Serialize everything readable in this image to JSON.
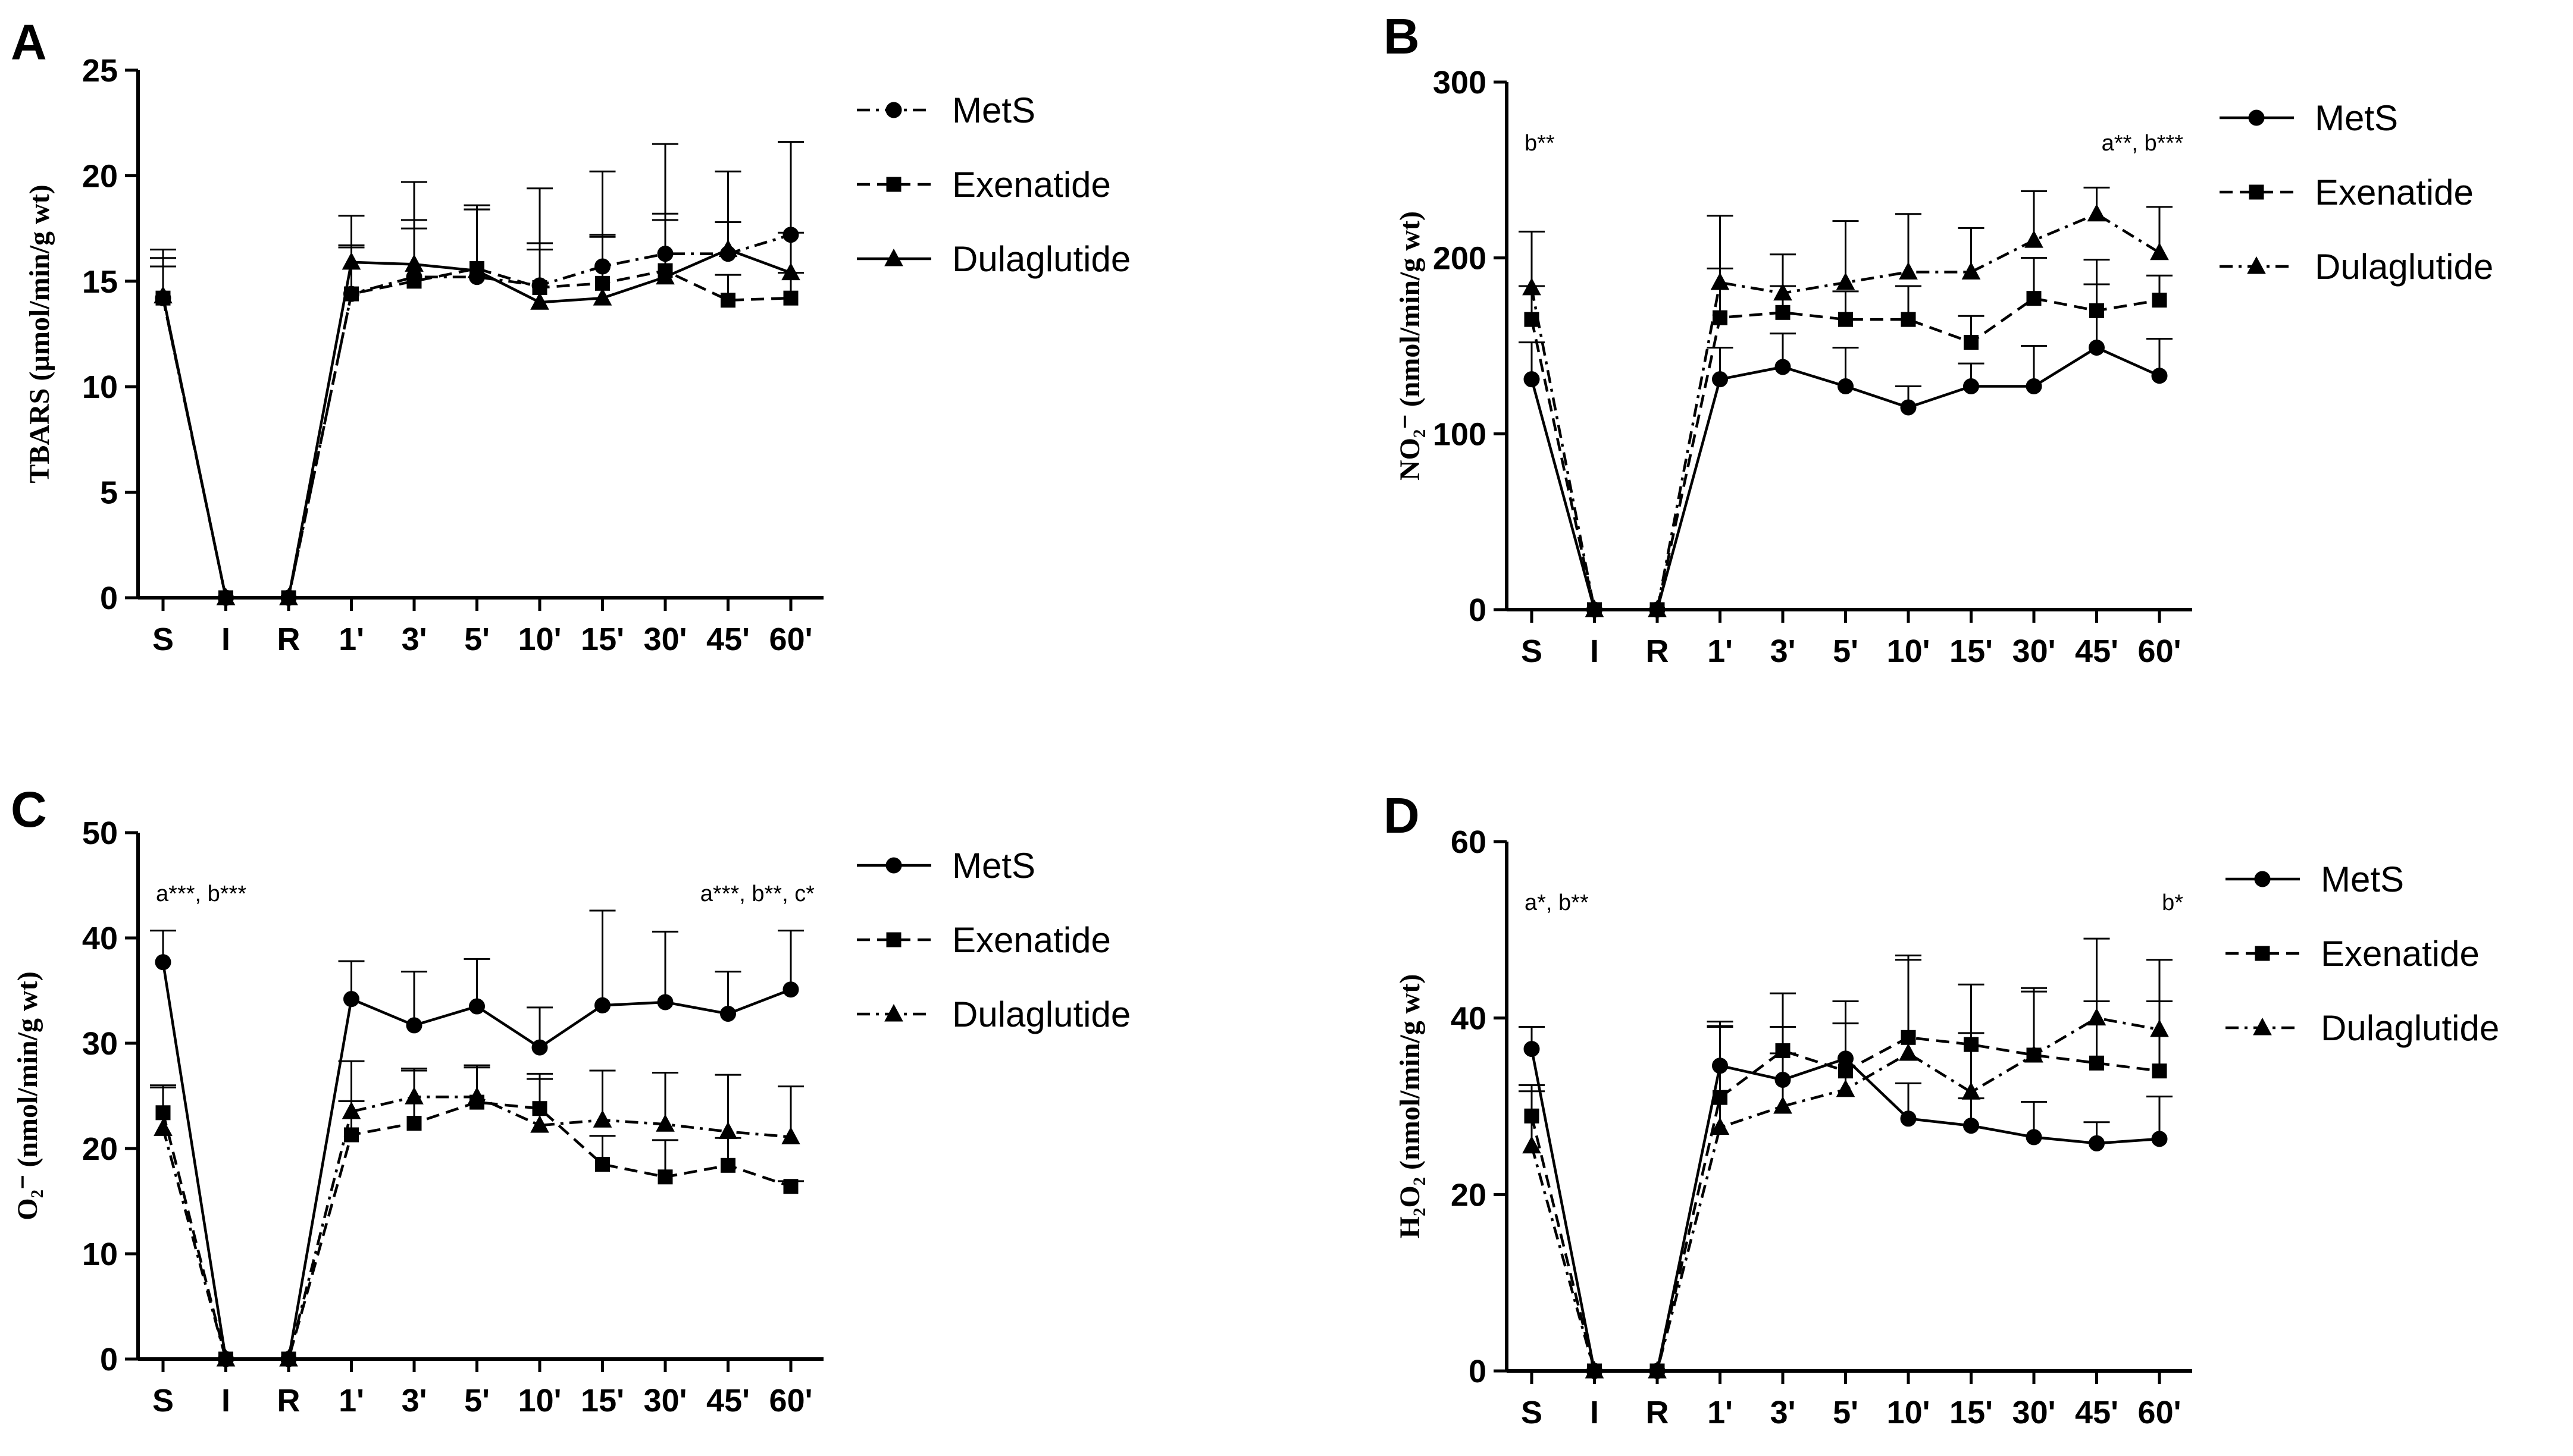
{
  "chart_data": [
    {
      "panel": "A",
      "type": "line",
      "categories": [
        "S",
        "I",
        "R",
        "1'",
        "3'",
        "5'",
        "10'",
        "15'",
        "30'",
        "45'",
        "60'"
      ],
      "ylabel": "TBARS (µmol/min/g wt)",
      "ylim": [
        0,
        25
      ],
      "yticks": [
        0,
        5,
        10,
        15,
        20,
        25
      ],
      "legend_position": "right",
      "annotations": [],
      "series": [
        {
          "name": "MetS",
          "marker": "circle",
          "dash": "dashdot",
          "values": [
            14.2,
            0,
            0,
            14.4,
            15.2,
            15.2,
            14.8,
            15.7,
            16.3,
            16.3,
            17.2
          ],
          "errors": [
            1.9,
            0,
            0,
            2.2,
            2.7,
            3.2,
            2.0,
            4.5,
            5.2,
            1.5,
            4.4
          ]
        },
        {
          "name": "Exenatide",
          "marker": "square",
          "dash": "dash",
          "values": [
            14.2,
            0,
            0,
            14.4,
            15.0,
            15.6,
            14.7,
            14.9,
            15.5,
            14.1,
            14.2
          ],
          "errors": [
            1.5,
            0,
            0,
            2.3,
            2.5,
            3.0,
            1.8,
            2.3,
            2.4,
            1.2,
            1.2
          ]
        },
        {
          "name": "Dulaglutide",
          "marker": "triangle",
          "dash": "solid",
          "values": [
            14.3,
            0,
            0,
            15.9,
            15.8,
            15.5,
            14.0,
            14.2,
            15.2,
            16.5,
            15.4
          ],
          "errors": [
            2.2,
            0,
            0,
            2.2,
            3.9,
            2.9,
            5.4,
            2.9,
            3.0,
            3.7,
            1.9
          ]
        }
      ]
    },
    {
      "panel": "B",
      "type": "line",
      "categories": [
        "S",
        "I",
        "R",
        "1'",
        "3'",
        "5'",
        "10'",
        "15'",
        "30'",
        "45'",
        "60'"
      ],
      "ylabel": "NO₂⁻ (nmol/min/g wt)",
      "ylim": [
        0,
        300
      ],
      "yticks": [
        0,
        100,
        200,
        300
      ],
      "legend_position": "right",
      "annotations": [
        {
          "text": "b**",
          "at_category": "S"
        },
        {
          "text": "a**, b***",
          "at_category": "60'"
        }
      ],
      "series": [
        {
          "name": "MetS",
          "marker": "circle",
          "dash": "solid",
          "values": [
            131,
            0,
            0,
            131,
            138,
            127,
            115,
            127,
            127,
            149,
            133
          ],
          "errors": [
            21,
            0,
            0,
            18,
            19,
            22,
            12,
            13,
            23,
            50,
            21
          ]
        },
        {
          "name": "Exenatide",
          "marker": "square",
          "dash": "dash",
          "values": [
            165,
            0,
            0,
            166,
            169,
            165,
            165,
            152,
            177,
            170,
            176
          ],
          "errors": [
            19,
            0,
            0,
            28,
            15,
            16,
            19,
            15,
            23,
            15,
            14
          ]
        },
        {
          "name": "Dulaglutide",
          "marker": "triangle",
          "dash": "dashdot",
          "values": [
            183,
            0,
            0,
            186,
            180,
            186,
            192,
            192,
            210,
            225,
            203
          ],
          "errors": [
            32,
            0,
            0,
            38,
            22,
            35,
            33,
            25,
            28,
            15,
            26
          ]
        }
      ]
    },
    {
      "panel": "C",
      "type": "line",
      "categories": [
        "S",
        "I",
        "R",
        "1'",
        "3'",
        "5'",
        "10'",
        "15'",
        "30'",
        "45'",
        "60'"
      ],
      "ylabel": "O₂⁻ (nmol/min/g wt)",
      "ylim": [
        0,
        50
      ],
      "yticks": [
        0,
        10,
        20,
        30,
        40,
        50
      ],
      "legend_position": "right",
      "annotations": [
        {
          "text": "a***, b***",
          "at_category": "S"
        },
        {
          "text": "a***, b**, c*",
          "at_category": "60'"
        }
      ],
      "series": [
        {
          "name": "MetS",
          "marker": "circle",
          "dash": "solid",
          "values": [
            37.7,
            0,
            0,
            34.2,
            31.7,
            33.5,
            29.6,
            33.6,
            33.9,
            32.8,
            35.1
          ],
          "errors": [
            3.0,
            0,
            0,
            3.6,
            5.1,
            4.5,
            3.8,
            9.0,
            6.7,
            4.0,
            5.6
          ]
        },
        {
          "name": "Exenatide",
          "marker": "square",
          "dash": "dash",
          "values": [
            23.4,
            0,
            0,
            21.3,
            22.4,
            24.4,
            23.8,
            18.5,
            17.3,
            18.4,
            16.4
          ],
          "errors": [
            2.6,
            0,
            0,
            7.0,
            5.0,
            3.5,
            3.3,
            2.7,
            3.5,
            2.6,
            0.5
          ]
        },
        {
          "name": "Dulaglutide",
          "marker": "triangle",
          "dash": "dashdot",
          "values": [
            21.9,
            0,
            0,
            23.5,
            24.9,
            24.9,
            22.2,
            22.7,
            22.3,
            21.6,
            21.1
          ],
          "errors": [
            3.9,
            0,
            0,
            1.0,
            2.7,
            2.8,
            4.4,
            4.7,
            4.9,
            5.4,
            4.8
          ]
        }
      ]
    },
    {
      "panel": "D",
      "type": "line",
      "categories": [
        "S",
        "I",
        "R",
        "1'",
        "3'",
        "5'",
        "10'",
        "15'",
        "30'",
        "45'",
        "60'"
      ],
      "ylabel": "H₂O₂ (nmol/min/g wt)",
      "ylim": [
        0,
        60
      ],
      "yticks": [
        0,
        20,
        40,
        60
      ],
      "legend_position": "right",
      "annotations": [
        {
          "text": "a*, b**",
          "at_category": "S"
        },
        {
          "text": "b*",
          "at_category": "60'"
        }
      ],
      "series": [
        {
          "name": "MetS",
          "marker": "circle",
          "dash": "solid",
          "values": [
            36.5,
            0,
            0,
            34.6,
            33.0,
            35.4,
            28.6,
            27.8,
            26.5,
            25.8,
            26.3
          ],
          "errors": [
            2.5,
            0,
            0,
            4.5,
            3.0,
            4.0,
            4.0,
            3.1,
            4.0,
            2.4,
            4.8
          ]
        },
        {
          "name": "Exenatide",
          "marker": "square",
          "dash": "dash",
          "values": [
            28.9,
            0,
            0,
            31.0,
            36.3,
            34.0,
            37.8,
            37.0,
            35.8,
            34.9,
            34.0
          ],
          "errors": [
            3.5,
            0,
            0,
            8.0,
            6.5,
            7.9,
            9.3,
            6.8,
            7.6,
            7.0,
            7.9
          ]
        },
        {
          "name": "Dulaglutide",
          "marker": "triangle",
          "dash": "dashdot",
          "values": [
            25.5,
            0,
            0,
            27.6,
            30.0,
            31.9,
            36.0,
            31.6,
            35.8,
            40.0,
            38.7
          ],
          "errors": [
            6.2,
            0,
            0,
            12.0,
            9.0,
            10.0,
            10.6,
            6.7,
            7.2,
            9.0,
            7.9
          ]
        }
      ]
    }
  ]
}
